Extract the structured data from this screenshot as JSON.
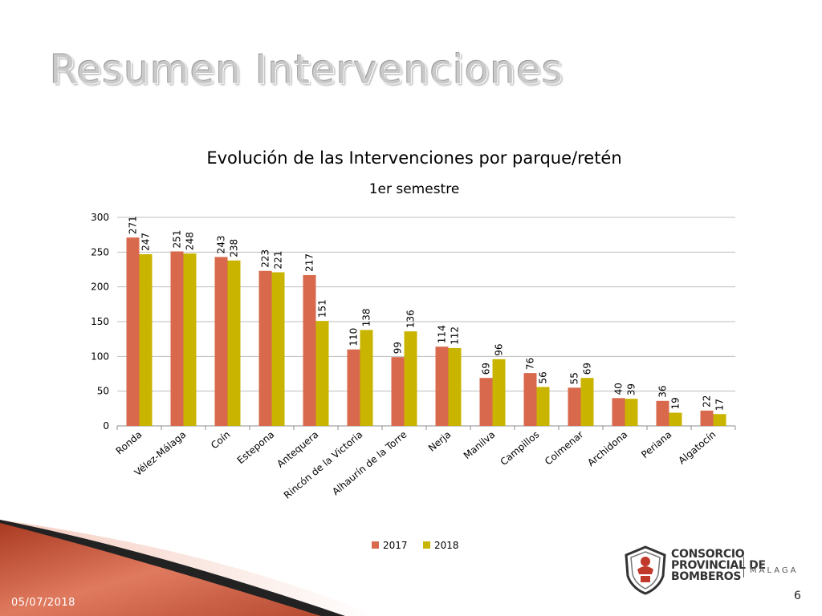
{
  "slide": {
    "title": "Resumen Intervenciones",
    "date": "05/07/2018",
    "page_number": "6"
  },
  "logo": {
    "line1": "CONSORCIO",
    "line2": "PROVINCIAL DE",
    "line3": "BOMBEROS",
    "city": "MÁLAGA"
  },
  "colors": {
    "series_2017": "#d9694d",
    "series_2018": "#c9b400",
    "gridline": "#bdbdbd"
  },
  "chart_data": {
    "type": "bar",
    "title": "Evolución de las Intervenciones por parque/retén",
    "subtitle": "1er semestre",
    "categories": [
      "Ronda",
      "Vélez-Málaga",
      "Coín",
      "Estepona",
      "Antequera",
      "Rincón de la Victoria",
      "Alhaurín de la Torre",
      "Nerja",
      "Manilva",
      "Campillos",
      "Colmenar",
      "Archidona",
      "Periana",
      "Algatocín"
    ],
    "series": [
      {
        "name": "2017",
        "values": [
          271,
          251,
          243,
          223,
          217,
          110,
          99,
          114,
          69,
          76,
          55,
          40,
          36,
          22
        ]
      },
      {
        "name": "2018",
        "values": [
          247,
          248,
          238,
          221,
          151,
          138,
          136,
          112,
          96,
          56,
          69,
          39,
          19,
          17
        ]
      }
    ],
    "ylim": [
      0,
      300
    ],
    "yticks": [
      0,
      50,
      100,
      150,
      200,
      250,
      300
    ],
    "grid": true,
    "legend": "bottom"
  }
}
